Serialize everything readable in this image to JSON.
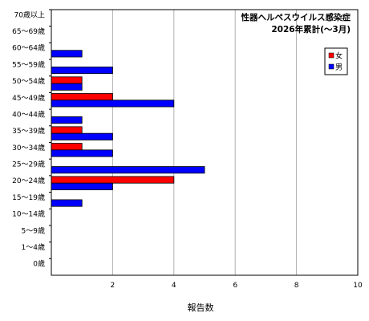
{
  "chart_data": {
    "type": "bar",
    "orientation": "horizontal",
    "title": "性器ヘルペスウイルス感染症",
    "subtitle": "2026年累計(～3月)",
    "xlabel": "報告数",
    "ylabel": "",
    "xlim": [
      0,
      10
    ],
    "xticks": [
      "2",
      "4",
      "6",
      "8",
      "10"
    ],
    "grid": true,
    "legend_position": "top-right",
    "categories": [
      "70歳以上",
      "65～69歳",
      "60～64歳",
      "55～59歳",
      "50～54歳",
      "45～49歳",
      "40～44歳",
      "35～39歳",
      "30～34歳",
      "25～29歳",
      "20～24歳",
      "15～19歳",
      "10～14歳",
      "5～9歳",
      "1～4歳",
      "0歳"
    ],
    "series": [
      {
        "name": "女",
        "color": "#ff0000",
        "values": [
          0,
          0,
          0,
          0,
          1,
          2,
          0,
          1,
          1,
          0,
          4,
          0,
          0,
          0,
          0,
          0
        ]
      },
      {
        "name": "男",
        "color": "#0000ff",
        "values": [
          0,
          0,
          1,
          2,
          1,
          4,
          1,
          2,
          2,
          5,
          2,
          1,
          0,
          0,
          0,
          0
        ]
      }
    ]
  }
}
